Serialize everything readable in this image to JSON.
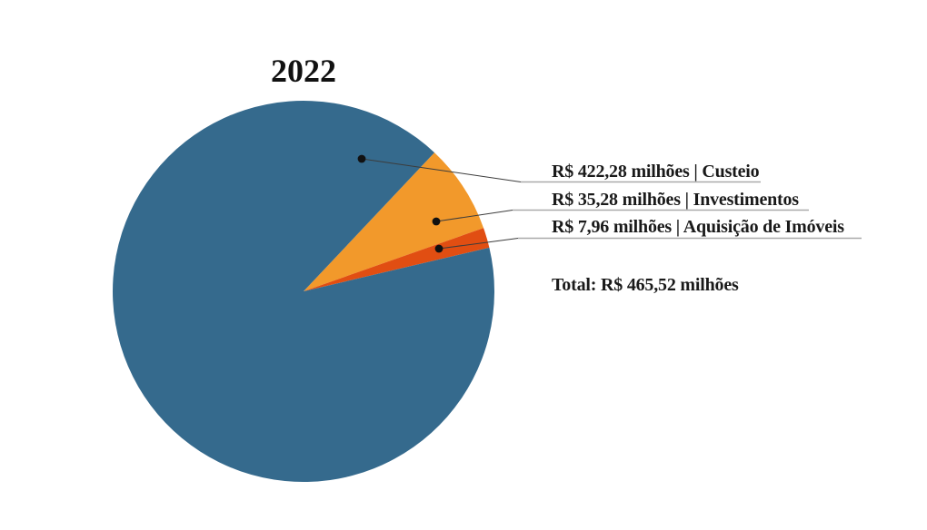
{
  "chart_data": {
    "type": "pie",
    "title": "2022",
    "slices": [
      {
        "label": "Custeio",
        "value": 422.28,
        "display": "R$ 422,28 milhões | Custeio",
        "color": "#356A8D"
      },
      {
        "label": "Investimentos",
        "value": 35.28,
        "display": "R$ 35,28 milhões | Investimentos",
        "color": "#F2992B"
      },
      {
        "label": "Aquisição de Imóveis",
        "value": 7.96,
        "display": "R$ 7,96 milhões | Aquisição de Imóveis",
        "color": "#E14E12"
      }
    ],
    "total": {
      "value": 465.52,
      "display": "Total: R$ 465,52 milhões"
    },
    "currency": "R$",
    "legend_position": "right",
    "labels_underlined": true,
    "colors": {
      "leader_line": "#3c3c3c",
      "underline": "#a9a9a9",
      "dot": "#111111",
      "text": "#1a1a1a",
      "background": "#ffffff"
    }
  }
}
